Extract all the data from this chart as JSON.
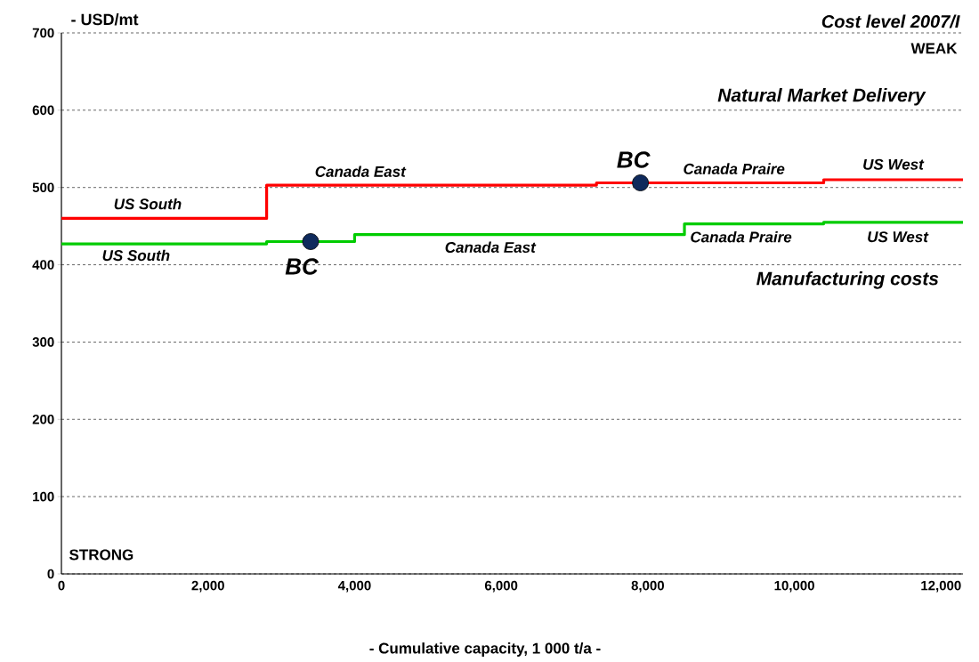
{
  "chart_data": {
    "type": "step",
    "ylabel": "- USD/mt",
    "xlabel": "- Cumulative capacity, 1 000 t/a -",
    "xlim": [
      0,
      12300
    ],
    "ylim": [
      0,
      700
    ],
    "xticks": [
      0,
      {
        "value": 2000,
        "label": "2,000"
      },
      {
        "value": 4000,
        "label": "4,000"
      },
      {
        "value": 6000,
        "label": "6,000"
      },
      {
        "value": 8000,
        "label": "8,000"
      },
      {
        "value": 10000,
        "label": "10,000"
      },
      {
        "value": 12000,
        "label": "12,000"
      }
    ],
    "yticks": [
      0,
      100,
      200,
      300,
      400,
      500,
      600,
      700
    ],
    "grid": "y",
    "marker": "none",
    "line_style": "solid",
    "series": [
      {
        "color": "#ff0000",
        "x": [
          0,
          2800,
          7300,
          10400,
          12300
        ],
        "values": [
          460,
          503,
          506,
          510,
          510
        ]
      },
      {
        "color": "#00cc00",
        "x": [
          0,
          2800,
          4000,
          8500,
          10400,
          12300
        ],
        "values": [
          427,
          430,
          439,
          453,
          455,
          455
        ]
      },
      {
        "type": "scatter",
        "color": "#0f2a5c",
        "marker": "circle",
        "x": [
          3400,
          7900
        ],
        "values": [
          430,
          506
        ]
      }
    ],
    "annotations": [
      "Cost level 2007/I",
      "WEAK",
      "STRONG",
      "Natural Market Delivery",
      "Manufacturing costs",
      "US South",
      "Canada East",
      "Canada Praire",
      "US West",
      "US South",
      "Canada East",
      "Canada Praire",
      "US West",
      {
        "text": "BC",
        "x": 3400,
        "y": 430
      },
      {
        "text": "BC",
        "x": 7900,
        "y": 506
      }
    ]
  }
}
